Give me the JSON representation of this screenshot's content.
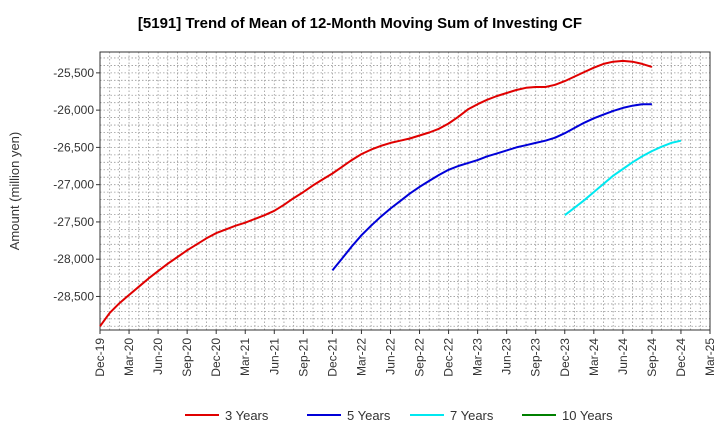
{
  "chart_data": {
    "type": "line",
    "title": "[5191]  Trend of Mean of 12-Month Moving Sum of Investing CF",
    "ylabel": "Amount (million yen)",
    "xlabel": "",
    "x_ticks": [
      "Dec-19",
      "Mar-20",
      "Jun-20",
      "Sep-20",
      "Dec-20",
      "Mar-21",
      "Jun-21",
      "Sep-21",
      "Dec-21",
      "Mar-22",
      "Jun-22",
      "Sep-22",
      "Dec-22",
      "Mar-23",
      "Jun-23",
      "Sep-23",
      "Dec-23",
      "Mar-24",
      "Jun-24",
      "Sep-24",
      "Dec-24",
      "Mar-25"
    ],
    "y_ticks": [
      -28500,
      -28000,
      -27500,
      -27000,
      -26500,
      -26000,
      -25500
    ],
    "y_tick_labels": [
      "-28,500",
      "-28,000",
      "-27,500",
      "-27,000",
      "-26,500",
      "-26,000",
      "-25,500"
    ],
    "ylim": [
      -28950,
      -25220
    ],
    "grid": true,
    "legend_position": "bottom",
    "series": [
      {
        "name": "3 Years",
        "color": "#e00000",
        "start_index": 0,
        "values": [
          -28900,
          -28720,
          -28590,
          -28480,
          -28370,
          -28260,
          -28160,
          -28060,
          -27970,
          -27880,
          -27800,
          -27720,
          -27650,
          -27600,
          -27550,
          -27510,
          -27460,
          -27410,
          -27350,
          -27270,
          -27180,
          -27100,
          -27010,
          -26930,
          -26850,
          -26760,
          -26670,
          -26590,
          -26530,
          -26480,
          -26440,
          -26410,
          -26380,
          -26340,
          -26300,
          -26250,
          -26180,
          -26090,
          -25990,
          -25920,
          -25860,
          -25810,
          -25770,
          -25730,
          -25700,
          -25690,
          -25690,
          -25660,
          -25610,
          -25550,
          -25490,
          -25430,
          -25380,
          -25350,
          -25340,
          -25350,
          -25380,
          -25420
        ]
      },
      {
        "name": "5 Years",
        "color": "#0000d8",
        "start_index": 24,
        "values": [
          -28150,
          -27990,
          -27830,
          -27680,
          -27550,
          -27430,
          -27320,
          -27220,
          -27120,
          -27030,
          -26950,
          -26870,
          -26800,
          -26750,
          -26710,
          -26670,
          -26620,
          -26580,
          -26540,
          -26500,
          -26470,
          -26440,
          -26410,
          -26370,
          -26310,
          -26240,
          -26170,
          -26110,
          -26060,
          -26010,
          -25970,
          -25940,
          -25920,
          -25920
        ]
      },
      {
        "name": "7 Years",
        "color": "#00e8f0",
        "start_index": 48,
        "values": [
          -27410,
          -27310,
          -27210,
          -27100,
          -26990,
          -26880,
          -26790,
          -26700,
          -26620,
          -26550,
          -26490,
          -26440,
          -26410
        ]
      },
      {
        "name": "10 Years",
        "color": "#008000",
        "start_index": 0,
        "values": []
      }
    ]
  }
}
